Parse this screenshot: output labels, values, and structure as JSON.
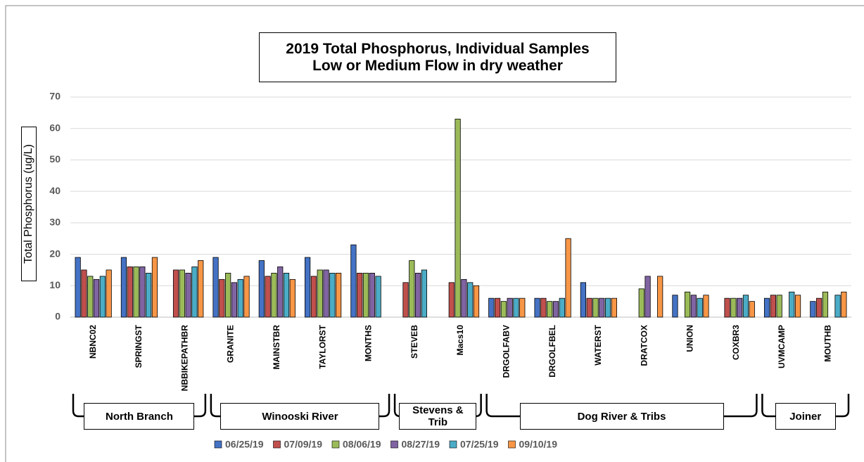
{
  "chart_data": {
    "type": "bar",
    "title": "2019 Total Phosphorus, Individual Samples",
    "subtitle": "Low or Medium Flow in dry weather",
    "y_label": "Total Phosphorus (ug/L)",
    "categories": [
      "NBNC02",
      "SPRINGST",
      "NBBIKEPATHBR",
      "GRANITE",
      "MAINSTBR",
      "TAYLORST",
      "MONTHS",
      "STEVEB",
      "Macs10",
      "DRGOLFABV",
      "DRGOLFBEL",
      "WATERST",
      "DRATCOX",
      "UNION",
      "COXBR3",
      "UVMCAMP",
      "MOUTHB"
    ],
    "series": [
      {
        "name": "06/25/19",
        "color": "#4472c4",
        "values": [
          19,
          19,
          null,
          19,
          18,
          19,
          23,
          null,
          null,
          6,
          6,
          11,
          null,
          7,
          null,
          6,
          5
        ]
      },
      {
        "name": "07/09/19",
        "color": "#c0504d",
        "values": [
          15,
          16,
          15,
          12,
          13,
          13,
          14,
          11,
          11,
          6,
          6,
          6,
          null,
          null,
          6,
          7,
          6
        ]
      },
      {
        "name": "08/06/19",
        "color": "#9bbb59",
        "values": [
          13,
          16,
          15,
          14,
          14,
          15,
          14,
          18,
          63,
          5,
          5,
          6,
          9,
          8,
          6,
          7,
          8
        ]
      },
      {
        "name": "08/27/19",
        "color": "#8064a2",
        "values": [
          12,
          16,
          14,
          11,
          16,
          15,
          14,
          14,
          12,
          6,
          5,
          6,
          13,
          7,
          6,
          null,
          null
        ]
      },
      {
        "name": "07/25/19",
        "color": "#4bacc6",
        "values": [
          13,
          14,
          16,
          12,
          14,
          14,
          13,
          15,
          11,
          6,
          6,
          6,
          null,
          6,
          7,
          8,
          7
        ]
      },
      {
        "name": "09/10/19",
        "color": "#f79646",
        "values": [
          15,
          19,
          18,
          13,
          12,
          14,
          null,
          null,
          10,
          6,
          25,
          6,
          13,
          7,
          5,
          7,
          8
        ]
      }
    ],
    "groups": [
      "North Branch",
      "Winooski River",
      "Stevens & Trib",
      "Dog River & Tribs",
      "Joiner"
    ],
    "ylim": [
      0,
      70
    ],
    "yticks": [
      0,
      10,
      20,
      30,
      40,
      50,
      60,
      70
    ],
    "grid": true
  }
}
